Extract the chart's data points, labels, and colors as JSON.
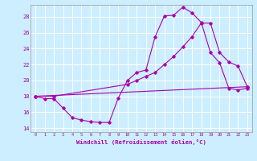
{
  "xlabel": "Windchill (Refroidissement éolien,°C)",
  "xlim": [
    -0.5,
    23.5
  ],
  "ylim": [
    13.5,
    29.5
  ],
  "yticks": [
    14,
    16,
    18,
    20,
    22,
    24,
    26,
    28
  ],
  "xticks": [
    0,
    1,
    2,
    3,
    4,
    5,
    6,
    7,
    8,
    9,
    10,
    11,
    12,
    13,
    14,
    15,
    16,
    17,
    18,
    19,
    20,
    21,
    22,
    23
  ],
  "background_color": "#cceeff",
  "line_color": "#aa00aa",
  "grid_color": "#ffffff",
  "series1_x": [
    0,
    1,
    2,
    3,
    4,
    5,
    6,
    7,
    8,
    9,
    10,
    11,
    12,
    13,
    14,
    15,
    16,
    17,
    18,
    19,
    20,
    21,
    22,
    23
  ],
  "series1_y": [
    18.0,
    17.7,
    17.7,
    16.5,
    15.3,
    15.0,
    14.8,
    14.7,
    14.7,
    17.8,
    20.0,
    21.0,
    21.3,
    25.5,
    28.1,
    28.2,
    29.2,
    28.5,
    27.3,
    23.5,
    22.2,
    19.0,
    18.8,
    19.0
  ],
  "series2_x": [
    0,
    2,
    10,
    11,
    12,
    13,
    14,
    15,
    16,
    17,
    18,
    19,
    20,
    21,
    22,
    23
  ],
  "series2_y": [
    18.0,
    18.0,
    19.5,
    20.0,
    20.5,
    21.0,
    22.0,
    23.0,
    24.2,
    25.5,
    27.2,
    27.2,
    23.5,
    22.3,
    21.8,
    19.2
  ],
  "series3_x": [
    0,
    23
  ],
  "series3_y": [
    18.0,
    19.2
  ]
}
